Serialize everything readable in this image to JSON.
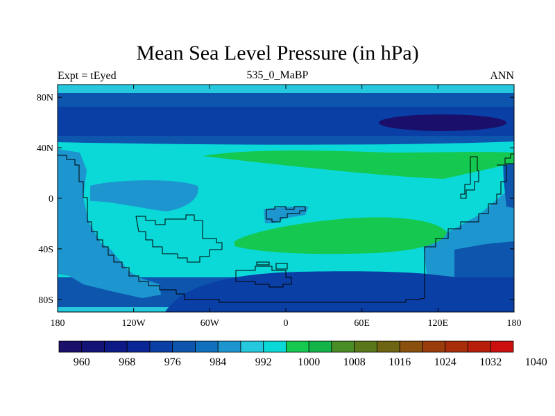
{
  "header": {
    "title": "Mean Sea Level Pressure (in hPa)",
    "subtitle": "535_0_MaBP",
    "left_label": "Expt = tEyed",
    "right_label": "ANN"
  },
  "map": {
    "projection": "cylindrical-equidistant",
    "lon_range": [
      -180,
      180
    ],
    "lat_range": [
      -90,
      90
    ],
    "x_ticks": [
      {
        "lon": -180,
        "label": "180"
      },
      {
        "lon": -120,
        "label": "120W"
      },
      {
        "lon": -60,
        "label": "60W"
      },
      {
        "lon": 0,
        "label": "0"
      },
      {
        "lon": 60,
        "label": "60E"
      },
      {
        "lon": 120,
        "label": "120E"
      },
      {
        "lon": 180,
        "label": "180"
      }
    ],
    "y_ticks": [
      {
        "lat": 80,
        "label": "80N"
      },
      {
        "lat": 40,
        "label": "40N"
      },
      {
        "lat": 0,
        "label": "0"
      },
      {
        "lat": -40,
        "label": "40S"
      },
      {
        "lat": -80,
        "label": "80S"
      }
    ]
  },
  "colorbar": {
    "colors": [
      "#1a0f6b",
      "#141478",
      "#0d1a85",
      "#0a2596",
      "#0a3fa5",
      "#0d55ad",
      "#1070bd",
      "#1d96cf",
      "#25c8dc",
      "#0ad9d8",
      "#14c850",
      "#14b44b",
      "#4a8c26",
      "#5a781a",
      "#6e6412",
      "#8a500e",
      "#9a3c0c",
      "#a82d0a",
      "#b81f0a",
      "#cc1010"
    ],
    "labels": [
      "960",
      "968",
      "976",
      "984",
      "992",
      "1000",
      "1008",
      "1016",
      "1024",
      "1032",
      "1040"
    ]
  }
}
